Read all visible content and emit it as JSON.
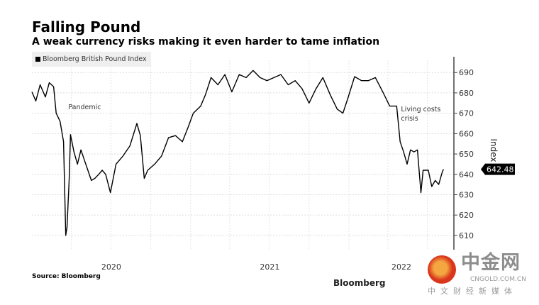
{
  "chart_data": {
    "type": "line",
    "title": "Falling Pound",
    "subtitle": "A weak currency risks making it even harder to tame inflation",
    "ylabel": "Index",
    "xlabel": "",
    "ylim": [
      603,
      696
    ],
    "xlim": [
      "2020-01-01",
      "2022-08-31"
    ],
    "yticks": [
      610,
      620,
      630,
      640,
      650,
      660,
      670,
      680,
      690
    ],
    "xtick_labels": [
      "2020",
      "2021",
      "2022"
    ],
    "grid": true,
    "legend": "top-left",
    "series": [
      {
        "name": "Bloomberg British Pound Index",
        "color": "#000000",
        "points": [
          [
            "2020-01-01",
            680.5
          ],
          [
            "2020-01-10",
            676
          ],
          [
            "2020-01-20",
            684
          ],
          [
            "2020-02-01",
            678
          ],
          [
            "2020-02-10",
            685
          ],
          [
            "2020-02-20",
            683
          ],
          [
            "2020-02-26",
            670
          ],
          [
            "2020-03-06",
            666
          ],
          [
            "2020-03-14",
            656
          ],
          [
            "2020-03-19",
            610
          ],
          [
            "2020-03-22",
            614
          ],
          [
            "2020-03-27",
            638
          ],
          [
            "2020-03-30",
            659.5
          ],
          [
            "2020-04-07",
            651
          ],
          [
            "2020-04-15",
            645
          ],
          [
            "2020-04-23",
            652
          ],
          [
            "2020-05-01",
            647
          ],
          [
            "2020-05-09",
            642
          ],
          [
            "2020-05-17",
            637
          ],
          [
            "2020-05-25",
            638
          ],
          [
            "2020-06-03",
            640
          ],
          [
            "2020-06-11",
            642
          ],
          [
            "2020-06-19",
            640
          ],
          [
            "2020-06-30",
            631
          ],
          [
            "2020-07-13",
            645
          ],
          [
            "2020-07-29",
            649
          ],
          [
            "2020-08-14",
            654
          ],
          [
            "2020-08-30",
            665
          ],
          [
            "2020-09-07",
            659
          ],
          [
            "2020-09-16",
            638
          ],
          [
            "2020-09-24",
            642
          ],
          [
            "2020-10-10",
            645
          ],
          [
            "2020-10-26",
            649
          ],
          [
            "2020-11-11",
            658
          ],
          [
            "2020-11-27",
            659
          ],
          [
            "2020-12-13",
            656
          ],
          [
            "2020-12-26",
            663
          ],
          [
            "2021-01-07",
            670
          ],
          [
            "2021-01-24",
            673.5
          ],
          [
            "2021-02-04",
            679
          ],
          [
            "2021-02-17",
            687.5
          ],
          [
            "2021-03-05",
            684
          ],
          [
            "2021-03-21",
            689
          ],
          [
            "2021-04-06",
            680.5
          ],
          [
            "2021-04-23",
            689
          ],
          [
            "2021-05-09",
            687.5
          ],
          [
            "2021-05-25",
            691
          ],
          [
            "2021-06-10",
            687.5
          ],
          [
            "2021-06-26",
            686
          ],
          [
            "2021-07-12",
            687.5
          ],
          [
            "2021-07-28",
            689
          ],
          [
            "2021-08-14",
            684
          ],
          [
            "2021-08-30",
            686
          ],
          [
            "2021-09-15",
            682
          ],
          [
            "2021-10-01",
            675
          ],
          [
            "2021-10-17",
            682
          ],
          [
            "2021-11-02",
            687.5
          ],
          [
            "2021-11-19",
            679
          ],
          [
            "2021-12-05",
            672
          ],
          [
            "2021-12-18",
            670
          ],
          [
            "2021-12-29",
            677
          ],
          [
            "2022-01-14",
            688
          ],
          [
            "2022-01-30",
            686
          ],
          [
            "2022-02-15",
            686
          ],
          [
            "2022-03-03",
            687.5
          ],
          [
            "2022-03-20",
            680.5
          ],
          [
            "2022-04-05",
            673.5
          ],
          [
            "2022-04-21",
            673.5
          ],
          [
            "2022-04-29",
            656
          ],
          [
            "2022-05-07",
            651
          ],
          [
            "2022-05-15",
            645
          ],
          [
            "2022-05-23",
            652
          ],
          [
            "2022-05-31",
            651
          ],
          [
            "2022-06-08",
            652
          ],
          [
            "2022-06-16",
            631
          ],
          [
            "2022-06-21",
            642
          ],
          [
            "2022-07-03",
            642
          ],
          [
            "2022-07-11",
            634
          ],
          [
            "2022-07-19",
            637
          ],
          [
            "2022-07-27",
            635
          ],
          [
            "2022-08-04",
            641
          ],
          [
            "2022-08-07",
            642.48
          ]
        ]
      }
    ],
    "last_value_label": "642.48",
    "annotations": [
      {
        "text": "Pandemic",
        "date": "2020-03-25",
        "value": 672
      },
      {
        "text": "Living costs crisis",
        "date": "2022-05-01",
        "value": 671
      }
    ],
    "source": "Source: Bloomberg"
  },
  "watermark": {
    "brand": "中金网",
    "domain": "CNGOLD.COM.CN",
    "tagline": "中文财经新媒体",
    "logo_text": "Bloomberg"
  }
}
